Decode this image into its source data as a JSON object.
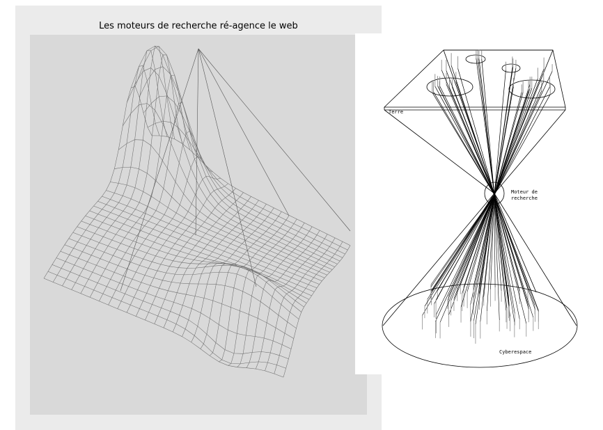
{
  "left_figure": {
    "title": "Les moteurs de recherche ré-agence le web"
  },
  "right_figure": {
    "label_terre": "Terre",
    "label_moteur_line1": "Moteur de",
    "label_moteur_line2": "recherche",
    "label_cyberespace": "Cyberespace"
  },
  "colors": {
    "panel_bg": "#ebebeb",
    "plot_bg": "#d9d9d9",
    "mesh_line": "#6e6e6e",
    "ink": "#000000"
  }
}
